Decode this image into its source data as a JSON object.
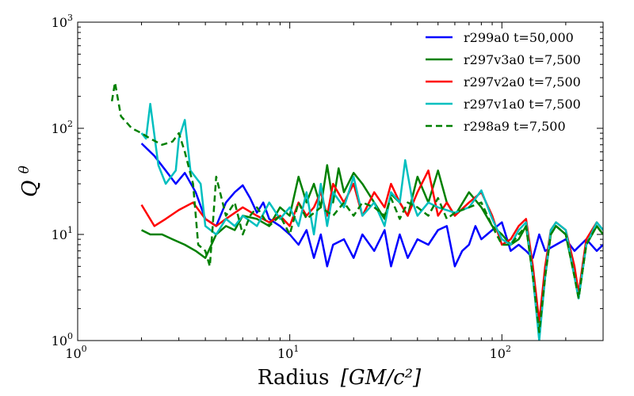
{
  "chart_data": {
    "type": "line",
    "scale": {
      "x": "log",
      "y": "log"
    },
    "xlim": [
      1,
      300
    ],
    "ylim": [
      1,
      1000
    ],
    "xlabel_text": "Radius",
    "xlabel_unit": "[GM/c²]",
    "ylabel_text": "Q",
    "ylabel_sup": "θ",
    "xticks": [
      {
        "value": 1,
        "base": "10",
        "exp": "0"
      },
      {
        "value": 10,
        "base": "10",
        "exp": "1"
      },
      {
        "value": 100,
        "base": "10",
        "exp": "2"
      }
    ],
    "yticks": [
      {
        "value": 1,
        "base": "10",
        "exp": "0"
      },
      {
        "value": 10,
        "base": "10",
        "exp": "1"
      },
      {
        "value": 100,
        "base": "10",
        "exp": "2"
      },
      {
        "value": 1000,
        "base": "10",
        "exp": "3"
      }
    ],
    "legend_position": "top-right",
    "series": [
      {
        "name": "r299a0 t=50,000",
        "color": "#0000ff",
        "dash": "solid",
        "points": [
          [
            2.0,
            72
          ],
          [
            2.3,
            55
          ],
          [
            2.6,
            40
          ],
          [
            2.9,
            30
          ],
          [
            3.2,
            38
          ],
          [
            3.6,
            25
          ],
          [
            4.0,
            14
          ],
          [
            4.5,
            12
          ],
          [
            5.0,
            20
          ],
          [
            5.5,
            25
          ],
          [
            6.0,
            29
          ],
          [
            6.5,
            22
          ],
          [
            7.0,
            16
          ],
          [
            7.5,
            20
          ],
          [
            8.0,
            14
          ],
          [
            9.0,
            12
          ],
          [
            10.0,
            10
          ],
          [
            11.0,
            8
          ],
          [
            12.0,
            11
          ],
          [
            13.0,
            6
          ],
          [
            14.0,
            10
          ],
          [
            15.0,
            5
          ],
          [
            16.0,
            8
          ],
          [
            18.0,
            9
          ],
          [
            20.0,
            6
          ],
          [
            22.0,
            10
          ],
          [
            25.0,
            7
          ],
          [
            28.0,
            11
          ],
          [
            30.0,
            5
          ],
          [
            33.0,
            10
          ],
          [
            36.0,
            6
          ],
          [
            40.0,
            9
          ],
          [
            45.0,
            8
          ],
          [
            50.0,
            11
          ],
          [
            55.0,
            12
          ],
          [
            60.0,
            5
          ],
          [
            65.0,
            7
          ],
          [
            70.0,
            8
          ],
          [
            75.0,
            12
          ],
          [
            80.0,
            9
          ],
          [
            90.0,
            11
          ],
          [
            100.0,
            13
          ],
          [
            110.0,
            7
          ],
          [
            120.0,
            8
          ],
          [
            130.0,
            7
          ],
          [
            140.0,
            6
          ],
          [
            150.0,
            10
          ],
          [
            160.0,
            7
          ],
          [
            180.0,
            8
          ],
          [
            200.0,
            9
          ],
          [
            220.0,
            7
          ],
          [
            250.0,
            9
          ],
          [
            280.0,
            7
          ],
          [
            300.0,
            8
          ]
        ]
      },
      {
        "name": "r297v3a0 t=7,500",
        "color": "#008000",
        "dash": "solid",
        "points": [
          [
            2.0,
            11
          ],
          [
            2.2,
            10
          ],
          [
            2.5,
            10
          ],
          [
            2.8,
            9
          ],
          [
            3.2,
            8
          ],
          [
            3.6,
            7
          ],
          [
            4.0,
            6
          ],
          [
            4.5,
            10
          ],
          [
            5.0,
            12
          ],
          [
            5.5,
            11
          ],
          [
            6.0,
            15
          ],
          [
            7.0,
            14
          ],
          [
            8.0,
            12
          ],
          [
            9.0,
            18
          ],
          [
            10.0,
            15
          ],
          [
            11.0,
            35
          ],
          [
            12.0,
            20
          ],
          [
            13.0,
            30
          ],
          [
            14.0,
            18
          ],
          [
            15.0,
            45
          ],
          [
            16.0,
            20
          ],
          [
            17.0,
            42
          ],
          [
            18.0,
            25
          ],
          [
            20.0,
            38
          ],
          [
            22.0,
            30
          ],
          [
            25.0,
            20
          ],
          [
            28.0,
            14
          ],
          [
            30.0,
            24
          ],
          [
            33.0,
            20
          ],
          [
            36.0,
            15
          ],
          [
            40.0,
            35
          ],
          [
            45.0,
            20
          ],
          [
            50.0,
            40
          ],
          [
            55.0,
            20
          ],
          [
            60.0,
            15
          ],
          [
            70.0,
            25
          ],
          [
            80.0,
            18
          ],
          [
            90.0,
            12
          ],
          [
            100.0,
            10
          ],
          [
            110.0,
            8
          ],
          [
            120.0,
            9
          ],
          [
            130.0,
            12
          ],
          [
            140.0,
            4
          ],
          [
            150.0,
            1.1
          ],
          [
            160.0,
            4
          ],
          [
            170.0,
            10
          ],
          [
            180.0,
            12
          ],
          [
            200.0,
            10
          ],
          [
            220.0,
            4
          ],
          [
            230.0,
            2.5
          ],
          [
            250.0,
            8
          ],
          [
            280.0,
            12
          ],
          [
            300.0,
            10
          ]
        ]
      },
      {
        "name": "r297v2a0 t=7,500",
        "color": "#ff0000",
        "dash": "solid",
        "points": [
          [
            2.0,
            19
          ],
          [
            2.3,
            12
          ],
          [
            2.6,
            14
          ],
          [
            3.0,
            17
          ],
          [
            3.5,
            20
          ],
          [
            4.0,
            14
          ],
          [
            4.5,
            12
          ],
          [
            5.0,
            14
          ],
          [
            6.0,
            18
          ],
          [
            7.0,
            15
          ],
          [
            8.0,
            13
          ],
          [
            9.0,
            15
          ],
          [
            10.0,
            12
          ],
          [
            11.0,
            20
          ],
          [
            12.0,
            15
          ],
          [
            13.0,
            18
          ],
          [
            14.0,
            25
          ],
          [
            15.0,
            15
          ],
          [
            16.0,
            30
          ],
          [
            18.0,
            20
          ],
          [
            20.0,
            30
          ],
          [
            22.0,
            15
          ],
          [
            25.0,
            25
          ],
          [
            28.0,
            18
          ],
          [
            30.0,
            30
          ],
          [
            33.0,
            20
          ],
          [
            36.0,
            15
          ],
          [
            40.0,
            25
          ],
          [
            45.0,
            40
          ],
          [
            50.0,
            15
          ],
          [
            55.0,
            20
          ],
          [
            60.0,
            15
          ],
          [
            70.0,
            20
          ],
          [
            80.0,
            25
          ],
          [
            90.0,
            15
          ],
          [
            100.0,
            8
          ],
          [
            110.0,
            9
          ],
          [
            120.0,
            12
          ],
          [
            130.0,
            14
          ],
          [
            140.0,
            5
          ],
          [
            150.0,
            1.5
          ],
          [
            160.0,
            5
          ],
          [
            170.0,
            11
          ],
          [
            180.0,
            13
          ],
          [
            200.0,
            11
          ],
          [
            220.0,
            5
          ],
          [
            230.0,
            2.8
          ],
          [
            250.0,
            9
          ],
          [
            280.0,
            13
          ],
          [
            300.0,
            11
          ]
        ]
      },
      {
        "name": "r297v1a0 t=7,500",
        "color": "#00bfbf",
        "dash": "solid",
        "points": [
          [
            2.0,
            90
          ],
          [
            2.1,
            80
          ],
          [
            2.2,
            170
          ],
          [
            2.4,
            45
          ],
          [
            2.6,
            30
          ],
          [
            2.9,
            40
          ],
          [
            3.0,
            80
          ],
          [
            3.2,
            120
          ],
          [
            3.4,
            40
          ],
          [
            3.8,
            30
          ],
          [
            4.0,
            12
          ],
          [
            4.5,
            10
          ],
          [
            5.0,
            14
          ],
          [
            5.5,
            12
          ],
          [
            6.0,
            15
          ],
          [
            7.0,
            12
          ],
          [
            8.0,
            20
          ],
          [
            9.0,
            14
          ],
          [
            10.0,
            18
          ],
          [
            11.0,
            12
          ],
          [
            12.0,
            25
          ],
          [
            13.0,
            10
          ],
          [
            14.0,
            30
          ],
          [
            15.0,
            12
          ],
          [
            16.0,
            25
          ],
          [
            18.0,
            18
          ],
          [
            20.0,
            35
          ],
          [
            22.0,
            15
          ],
          [
            25.0,
            20
          ],
          [
            28.0,
            12
          ],
          [
            30.0,
            25
          ],
          [
            33.0,
            20
          ],
          [
            35.0,
            50
          ],
          [
            38.0,
            20
          ],
          [
            40.0,
            15
          ],
          [
            45.0,
            20
          ],
          [
            50.0,
            18
          ],
          [
            60.0,
            16
          ],
          [
            70.0,
            18
          ],
          [
            80.0,
            26
          ],
          [
            90.0,
            14
          ],
          [
            100.0,
            9
          ],
          [
            110.0,
            8
          ],
          [
            120.0,
            11
          ],
          [
            130.0,
            13
          ],
          [
            140.0,
            4
          ],
          [
            150.0,
            1.0
          ],
          [
            160.0,
            4
          ],
          [
            170.0,
            11
          ],
          [
            180.0,
            13
          ],
          [
            200.0,
            11
          ],
          [
            220.0,
            4
          ],
          [
            230.0,
            2.5
          ],
          [
            250.0,
            8
          ],
          [
            280.0,
            13
          ],
          [
            300.0,
            11
          ]
        ]
      },
      {
        "name": "r298a9 t=7,500",
        "color": "#008000",
        "dash": "dashed",
        "points": [
          [
            1.45,
            180
          ],
          [
            1.5,
            270
          ],
          [
            1.6,
            130
          ],
          [
            1.8,
            100
          ],
          [
            2.0,
            90
          ],
          [
            2.2,
            80
          ],
          [
            2.5,
            70
          ],
          [
            2.8,
            75
          ],
          [
            3.0,
            90
          ],
          [
            3.2,
            60
          ],
          [
            3.5,
            30
          ],
          [
            3.7,
            8
          ],
          [
            4.0,
            7
          ],
          [
            4.2,
            5
          ],
          [
            4.5,
            35
          ],
          [
            5.0,
            15
          ],
          [
            5.5,
            20
          ],
          [
            6.0,
            10
          ],
          [
            6.5,
            15
          ],
          [
            7.0,
            18
          ],
          [
            8.0,
            12
          ],
          [
            9.0,
            15
          ],
          [
            10.0,
            10
          ],
          [
            11.0,
            20
          ],
          [
            12.0,
            14
          ],
          [
            14.0,
            18
          ],
          [
            16.0,
            15
          ],
          [
            18.0,
            20
          ],
          [
            20.0,
            15
          ],
          [
            22.0,
            20
          ],
          [
            25.0,
            18
          ],
          [
            28.0,
            15
          ],
          [
            30.0,
            22
          ],
          [
            33.0,
            14
          ],
          [
            36.0,
            20
          ],
          [
            40.0,
            18
          ],
          [
            45.0,
            15
          ],
          [
            50.0,
            22
          ],
          [
            55.0,
            14
          ],
          [
            60.0,
            16
          ],
          [
            70.0,
            18
          ],
          [
            80.0,
            20
          ],
          [
            90.0,
            12
          ],
          [
            100.0,
            8
          ],
          [
            110.0,
            8
          ],
          [
            120.0,
            10
          ],
          [
            130.0,
            12
          ],
          [
            140.0,
            4
          ],
          [
            150.0,
            1.2
          ],
          [
            160.0,
            4
          ],
          [
            170.0,
            10
          ],
          [
            180.0,
            12
          ],
          [
            200.0,
            10
          ],
          [
            220.0,
            4
          ],
          [
            230.0,
            2.5
          ],
          [
            250.0,
            8
          ],
          [
            280.0,
            12
          ],
          [
            300.0,
            10
          ]
        ]
      }
    ]
  }
}
